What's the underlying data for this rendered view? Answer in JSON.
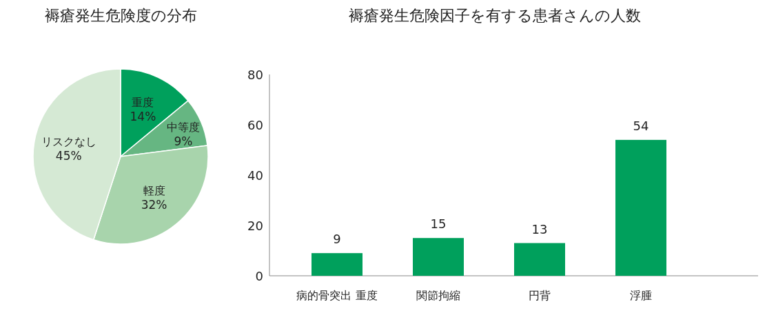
{
  "chart_data": [
    {
      "type": "pie",
      "title": "褥瘡発生危険度の分布",
      "categories": [
        "重度",
        "中等度",
        "軽度",
        "リスクなし"
      ],
      "values": [
        14,
        9,
        32,
        45
      ],
      "value_labels": [
        "14%",
        "9%",
        "32%",
        "45%"
      ],
      "colors": [
        "#00a05c",
        "#66b682",
        "#a8d4ac",
        "#d5e9d4"
      ]
    },
    {
      "type": "bar",
      "title": "褥瘡発生危険因子を有する患者さんの人数",
      "categories": [
        "病的骨突出 重度",
        "関節拘縮",
        "円背",
        "浮腫"
      ],
      "values": [
        9,
        15,
        13,
        54
      ],
      "color": "#00a05c",
      "ylim": [
        0,
        80
      ],
      "yticks": [
        0,
        20,
        40,
        60,
        80
      ],
      "data_labels": true,
      "grid": false
    }
  ]
}
